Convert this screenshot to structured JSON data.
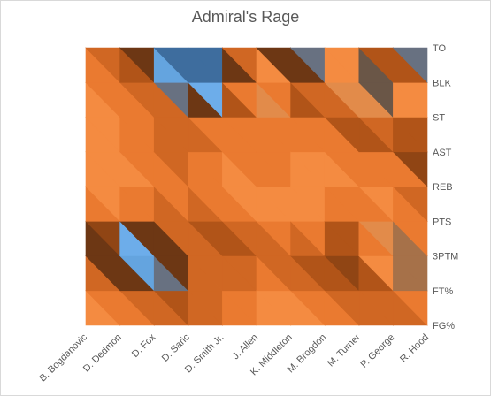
{
  "chart_data": {
    "type": "heatmap",
    "style": "surface-contour",
    "title": "Admiral's Rage",
    "xlabel": "",
    "ylabel": "",
    "legend": "none",
    "players": [
      "B. Bogdanovic",
      "D. Dedmon",
      "D. Fox",
      "D. Saric",
      "D. Smith Jr.",
      "J. Allen",
      "K. Middleton",
      "M. Brogdon",
      "M. Turner",
      "P. George",
      "R. Hood"
    ],
    "stats": [
      "FG%",
      "FT%",
      "3PTM",
      "PTS",
      "REB",
      "AST",
      "ST",
      "BLK",
      "TO"
    ],
    "values": [
      [
        4,
        4,
        3,
        3,
        4,
        4,
        4,
        4,
        4
      ],
      [
        4,
        3,
        1,
        4,
        4,
        4,
        4,
        3,
        3
      ],
      [
        4,
        3,
        0,
        3,
        4,
        3,
        4,
        3,
        1
      ],
      [
        3,
        3,
        4,
        3,
        4,
        3,
        3,
        0,
        0
      ],
      [
        4,
        3,
        3,
        3,
        4,
        4,
        4,
        1,
        0
      ],
      [
        4,
        4,
        3,
        4,
        4,
        3,
        4,
        6,
        4
      ],
      [
        4,
        4,
        3,
        4,
        4,
        4,
        3,
        2,
        1
      ],
      [
        4,
        3,
        3,
        4,
        4,
        4,
        4,
        4,
        1
      ],
      [
        4,
        3,
        2,
        3,
        4,
        3,
        2,
        7,
        4
      ],
      [
        3,
        4,
        6,
        4,
        4,
        4,
        4,
        4,
        1
      ],
      [
        3,
        4,
        4,
        3,
        3,
        1,
        4,
        4,
        1
      ]
    ],
    "zlim": [
      0,
      7
    ],
    "colors": [
      "#41719c",
      "#5b9bd5",
      "#70b0ee",
      "#843c0c",
      "#c55a11",
      "#ed7d31",
      "#ff9d4f",
      "#7f7f7f",
      "#a5a5a5",
      "#ffc000"
    ]
  }
}
